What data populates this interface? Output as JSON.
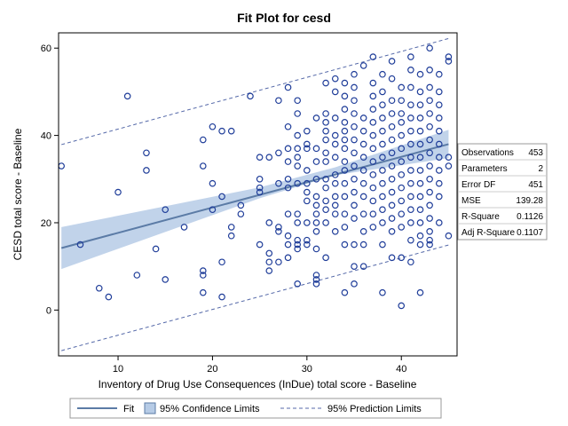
{
  "chart_data": {
    "type": "scatter",
    "title": "Fit Plot for cesd",
    "xlabel": "Inventory of Drug Use Consequences (InDue) total score - Baseline",
    "ylabel": "CESD total score - Baseline",
    "xlim": [
      3.7,
      45.9
    ],
    "ylim": [
      -10.5,
      63.5
    ],
    "xticks": [
      10,
      20,
      30,
      40
    ],
    "yticks": [
      0,
      20,
      40,
      60
    ],
    "grid": false,
    "legend_position": "bottom",
    "legend": [
      "Fit",
      "95% Confidence Limits",
      "95% Prediction Limits"
    ],
    "colors": {
      "points": "#1f3d99",
      "fit": "#5b7ba6",
      "confidence_band": "#b6cbe6",
      "prediction": "#5468a8",
      "frame": "#000000"
    },
    "fit": {
      "x0": 4,
      "y0": 14.2,
      "x1": 45,
      "y1": 38.0
    },
    "confidence_band": {
      "x": [
        4,
        25,
        33,
        45
      ],
      "lower": [
        9.4,
        25.6,
        30.9,
        34.8
      ],
      "upper": [
        19.0,
        28.1,
        32.7,
        41.3
      ]
    },
    "prediction_limits": {
      "x0": 4,
      "lower0": -9.3,
      "upper0": 37.9,
      "x1": 45,
      "lower1": 14.9,
      "upper1": 62.2
    },
    "points": [
      [
        4,
        33
      ],
      [
        6,
        15
      ],
      [
        8,
        5
      ],
      [
        9,
        3
      ],
      [
        10,
        27
      ],
      [
        11,
        49
      ],
      [
        12,
        8
      ],
      [
        13,
        36
      ],
      [
        13,
        32
      ],
      [
        14,
        14
      ],
      [
        15,
        23
      ],
      [
        15,
        7
      ],
      [
        17,
        19
      ],
      [
        19,
        39
      ],
      [
        19,
        33
      ],
      [
        19,
        9
      ],
      [
        19,
        8
      ],
      [
        19,
        4
      ],
      [
        20,
        42
      ],
      [
        20,
        29
      ],
      [
        20,
        23
      ],
      [
        21,
        41
      ],
      [
        21,
        26
      ],
      [
        21,
        11
      ],
      [
        21,
        3
      ],
      [
        22,
        41
      ],
      [
        22,
        19
      ],
      [
        22,
        17
      ],
      [
        23,
        24
      ],
      [
        23,
        22
      ],
      [
        24,
        49
      ],
      [
        25,
        35
      ],
      [
        25,
        30
      ],
      [
        25,
        28
      ],
      [
        25,
        27
      ],
      [
        25,
        15
      ],
      [
        26,
        35
      ],
      [
        26,
        13
      ],
      [
        26,
        11
      ],
      [
        26,
        9
      ],
      [
        26,
        20
      ],
      [
        27,
        48
      ],
      [
        27,
        36
      ],
      [
        27,
        29
      ],
      [
        27,
        18
      ],
      [
        27,
        19
      ],
      [
        27,
        11
      ],
      [
        28,
        51
      ],
      [
        28,
        42
      ],
      [
        28,
        37
      ],
      [
        28,
        34
      ],
      [
        28,
        30
      ],
      [
        28,
        28
      ],
      [
        28,
        22
      ],
      [
        28,
        17
      ],
      [
        28,
        15
      ],
      [
        28,
        12
      ],
      [
        29,
        48
      ],
      [
        29,
        45
      ],
      [
        29,
        40
      ],
      [
        29,
        37
      ],
      [
        29,
        35
      ],
      [
        29,
        33
      ],
      [
        29,
        29
      ],
      [
        29,
        22
      ],
      [
        29,
        20
      ],
      [
        29,
        16
      ],
      [
        29,
        15
      ],
      [
        29,
        14
      ],
      [
        29,
        6
      ],
      [
        30,
        41
      ],
      [
        30,
        38
      ],
      [
        30,
        37
      ],
      [
        30,
        32
      ],
      [
        30,
        29
      ],
      [
        30,
        27
      ],
      [
        30,
        25
      ],
      [
        30,
        20
      ],
      [
        30,
        16
      ],
      [
        30,
        15
      ],
      [
        31,
        44
      ],
      [
        31,
        37
      ],
      [
        31,
        34
      ],
      [
        31,
        30
      ],
      [
        31,
        26
      ],
      [
        31,
        24
      ],
      [
        31,
        22
      ],
      [
        31,
        20
      ],
      [
        31,
        18
      ],
      [
        31,
        14
      ],
      [
        31,
        8
      ],
      [
        31,
        7
      ],
      [
        31,
        6
      ],
      [
        32,
        52
      ],
      [
        32,
        45
      ],
      [
        32,
        43
      ],
      [
        32,
        41
      ],
      [
        32,
        39
      ],
      [
        32,
        36
      ],
      [
        32,
        34
      ],
      [
        32,
        30
      ],
      [
        32,
        28
      ],
      [
        32,
        25
      ],
      [
        32,
        23
      ],
      [
        32,
        20
      ],
      [
        32,
        12
      ],
      [
        33,
        53
      ],
      [
        33,
        50
      ],
      [
        33,
        44
      ],
      [
        33,
        40
      ],
      [
        33,
        38
      ],
      [
        33,
        35
      ],
      [
        33,
        31
      ],
      [
        33,
        29
      ],
      [
        33,
        26
      ],
      [
        33,
        24
      ],
      [
        33,
        22
      ],
      [
        33,
        18
      ],
      [
        34,
        52
      ],
      [
        34,
        49
      ],
      [
        34,
        46
      ],
      [
        34,
        43
      ],
      [
        34,
        41
      ],
      [
        34,
        39
      ],
      [
        34,
        37
      ],
      [
        34,
        34
      ],
      [
        34,
        32
      ],
      [
        34,
        29
      ],
      [
        34,
        26
      ],
      [
        34,
        22
      ],
      [
        34,
        19
      ],
      [
        34,
        15
      ],
      [
        34,
        4
      ],
      [
        35,
        54
      ],
      [
        35,
        51
      ],
      [
        35,
        48
      ],
      [
        35,
        45
      ],
      [
        35,
        42
      ],
      [
        35,
        39
      ],
      [
        35,
        36
      ],
      [
        35,
        33
      ],
      [
        35,
        30
      ],
      [
        35,
        27
      ],
      [
        35,
        24
      ],
      [
        35,
        21
      ],
      [
        35,
        15
      ],
      [
        35,
        10
      ],
      [
        35,
        6
      ],
      [
        36,
        56
      ],
      [
        36,
        44
      ],
      [
        36,
        41
      ],
      [
        36,
        38
      ],
      [
        36,
        35
      ],
      [
        36,
        32
      ],
      [
        36,
        29
      ],
      [
        36,
        26
      ],
      [
        36,
        22
      ],
      [
        36,
        18
      ],
      [
        36,
        15
      ],
      [
        36,
        10
      ],
      [
        37,
        58
      ],
      [
        37,
        52
      ],
      [
        37,
        49
      ],
      [
        37,
        46
      ],
      [
        37,
        43
      ],
      [
        37,
        40
      ],
      [
        37,
        37
      ],
      [
        37,
        34
      ],
      [
        37,
        31
      ],
      [
        37,
        28
      ],
      [
        37,
        25
      ],
      [
        37,
        22
      ],
      [
        37,
        19
      ],
      [
        38,
        54
      ],
      [
        38,
        50
      ],
      [
        38,
        47
      ],
      [
        38,
        44
      ],
      [
        38,
        41
      ],
      [
        38,
        38
      ],
      [
        38,
        35
      ],
      [
        38,
        32
      ],
      [
        38,
        29
      ],
      [
        38,
        26
      ],
      [
        38,
        23
      ],
      [
        38,
        20
      ],
      [
        38,
        15
      ],
      [
        38,
        4
      ],
      [
        39,
        57
      ],
      [
        39,
        53
      ],
      [
        39,
        48
      ],
      [
        39,
        45
      ],
      [
        39,
        42
      ],
      [
        39,
        39
      ],
      [
        39,
        36
      ],
      [
        39,
        33
      ],
      [
        39,
        30
      ],
      [
        39,
        27
      ],
      [
        39,
        24
      ],
      [
        39,
        21
      ],
      [
        39,
        18
      ],
      [
        39,
        12
      ],
      [
        40,
        51
      ],
      [
        40,
        48
      ],
      [
        40,
        45
      ],
      [
        40,
        43
      ],
      [
        40,
        40
      ],
      [
        40,
        37
      ],
      [
        40,
        34
      ],
      [
        40,
        31
      ],
      [
        40,
        28
      ],
      [
        40,
        25
      ],
      [
        40,
        22
      ],
      [
        40,
        19
      ],
      [
        40,
        12
      ],
      [
        40,
        1
      ],
      [
        41,
        58
      ],
      [
        41,
        55
      ],
      [
        41,
        51
      ],
      [
        41,
        47
      ],
      [
        41,
        44
      ],
      [
        41,
        41
      ],
      [
        41,
        38
      ],
      [
        41,
        35
      ],
      [
        41,
        32
      ],
      [
        41,
        29
      ],
      [
        41,
        26
      ],
      [
        41,
        23
      ],
      [
        41,
        20
      ],
      [
        41,
        16
      ],
      [
        41,
        11
      ],
      [
        42,
        54
      ],
      [
        42,
        50
      ],
      [
        42,
        47
      ],
      [
        42,
        44
      ],
      [
        42,
        41
      ],
      [
        42,
        38
      ],
      [
        42,
        35
      ],
      [
        42,
        32
      ],
      [
        42,
        29
      ],
      [
        42,
        26
      ],
      [
        42,
        23
      ],
      [
        42,
        20
      ],
      [
        42,
        17
      ],
      [
        42,
        15
      ],
      [
        42,
        4
      ],
      [
        43,
        60
      ],
      [
        43,
        55
      ],
      [
        43,
        51
      ],
      [
        43,
        48
      ],
      [
        43,
        45
      ],
      [
        43,
        42
      ],
      [
        43,
        39
      ],
      [
        43,
        36
      ],
      [
        43,
        33
      ],
      [
        43,
        30
      ],
      [
        43,
        27
      ],
      [
        43,
        24
      ],
      [
        43,
        21
      ],
      [
        43,
        18
      ],
      [
        43,
        16
      ],
      [
        43,
        15
      ],
      [
        44,
        54
      ],
      [
        44,
        50
      ],
      [
        44,
        47
      ],
      [
        44,
        44
      ],
      [
        44,
        41
      ],
      [
        44,
        38
      ],
      [
        44,
        35
      ],
      [
        44,
        32
      ],
      [
        44,
        29
      ],
      [
        44,
        26
      ],
      [
        44,
        20
      ],
      [
        45,
        58
      ],
      [
        45,
        57
      ],
      [
        45,
        35
      ],
      [
        45,
        33
      ],
      [
        45,
        17
      ]
    ]
  },
  "stats_table": [
    {
      "label": "Observations",
      "value": "453"
    },
    {
      "label": "Parameters",
      "value": "2"
    },
    {
      "label": "Error DF",
      "value": "451"
    },
    {
      "label": "MSE",
      "value": "139.28"
    },
    {
      "label": "R-Square",
      "value": "0.1126"
    },
    {
      "label": "Adj R-Square",
      "value": "0.1107"
    }
  ],
  "legend_items": [
    {
      "key": "fit",
      "label": "Fit"
    },
    {
      "key": "confidence",
      "label": "95% Confidence Limits"
    },
    {
      "key": "prediction",
      "label": "95% Prediction Limits"
    }
  ]
}
